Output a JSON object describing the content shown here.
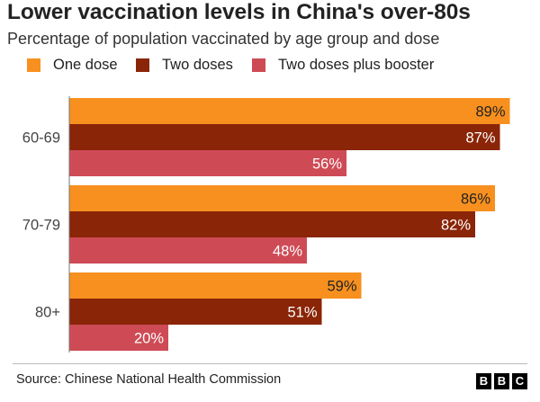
{
  "title": "Lower vaccination levels in China's over-80s",
  "subtitle": "Percentage of population vaccinated by age group and dose",
  "source": "Source: Chinese National Health Commission",
  "logo": "BBC",
  "colors": {
    "one_dose": "#f7901e",
    "two_doses": "#8a2508",
    "booster": "#ce4b56",
    "axis": "#777777"
  },
  "chart_data": {
    "type": "bar",
    "orientation": "horizontal",
    "title": "Lower vaccination levels in China's over-80s",
    "subtitle": "Percentage of population vaccinated by age group and dose",
    "categories": [
      "60-69",
      "70-79",
      "80+"
    ],
    "series": [
      {
        "name": "One dose",
        "values": [
          89,
          86,
          59
        ],
        "labels": [
          "89%",
          "86%",
          "59%"
        ]
      },
      {
        "name": "Two doses",
        "values": [
          87,
          82,
          51
        ],
        "labels": [
          "87%",
          "82%",
          "51%"
        ]
      },
      {
        "name": "Two doses plus booster",
        "values": [
          56,
          48,
          20
        ],
        "labels": [
          "56%",
          "48%",
          "20%"
        ]
      }
    ],
    "xlim": [
      0,
      100
    ],
    "legend": "top-left",
    "grid": false
  }
}
